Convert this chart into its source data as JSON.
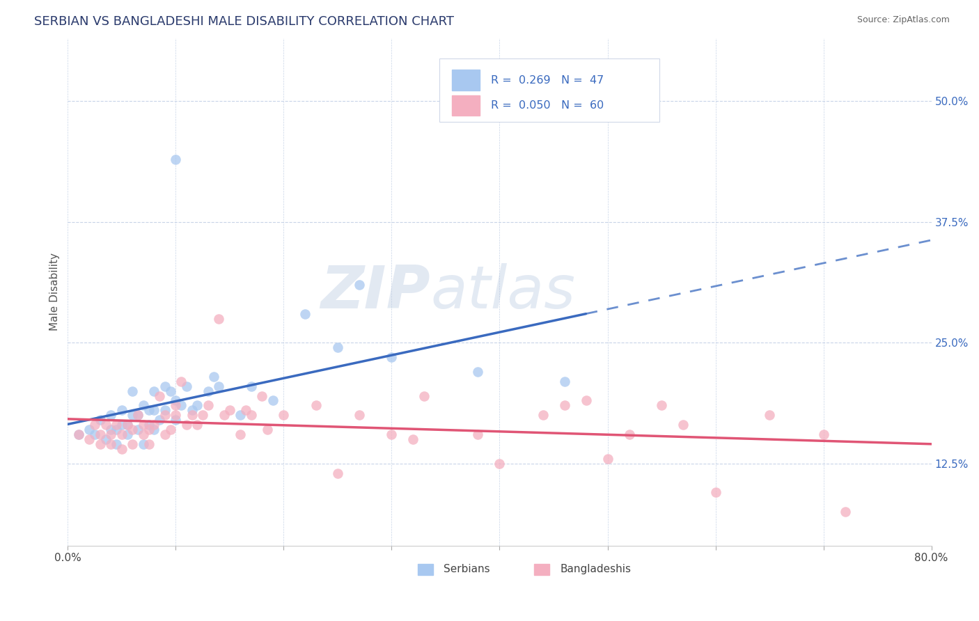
{
  "title": "SERBIAN VS BANGLADESHI MALE DISABILITY CORRELATION CHART",
  "source": "Source: ZipAtlas.com",
  "ylabel": "Male Disability",
  "watermark": "ZIPAtlas",
  "legend_serbian_R": "0.269",
  "legend_serbian_N": "47",
  "legend_bangladeshi_R": "0.050",
  "legend_bangladeshi_N": "60",
  "ytick_labels": [
    "12.5%",
    "25.0%",
    "37.5%",
    "50.0%"
  ],
  "ytick_values": [
    0.125,
    0.25,
    0.375,
    0.5
  ],
  "xlim": [
    0.0,
    0.8
  ],
  "ylim": [
    0.04,
    0.565
  ],
  "serbian_color": "#a8c8f0",
  "bangladeshi_color": "#f4afc0",
  "serbian_line_color": "#3a6abf",
  "bangladeshi_line_color": "#e05575",
  "serbian_scatter": [
    [
      0.01,
      0.155
    ],
    [
      0.02,
      0.16
    ],
    [
      0.025,
      0.155
    ],
    [
      0.03,
      0.17
    ],
    [
      0.035,
      0.15
    ],
    [
      0.04,
      0.16
    ],
    [
      0.04,
      0.175
    ],
    [
      0.045,
      0.145
    ],
    [
      0.045,
      0.16
    ],
    [
      0.05,
      0.165
    ],
    [
      0.05,
      0.18
    ],
    [
      0.055,
      0.155
    ],
    [
      0.055,
      0.165
    ],
    [
      0.06,
      0.175
    ],
    [
      0.06,
      0.2
    ],
    [
      0.065,
      0.16
    ],
    [
      0.065,
      0.175
    ],
    [
      0.07,
      0.185
    ],
    [
      0.07,
      0.145
    ],
    [
      0.075,
      0.165
    ],
    [
      0.075,
      0.18
    ],
    [
      0.08,
      0.16
    ],
    [
      0.08,
      0.18
    ],
    [
      0.08,
      0.2
    ],
    [
      0.085,
      0.17
    ],
    [
      0.09,
      0.205
    ],
    [
      0.09,
      0.18
    ],
    [
      0.095,
      0.2
    ],
    [
      0.1,
      0.17
    ],
    [
      0.1,
      0.19
    ],
    [
      0.105,
      0.185
    ],
    [
      0.11,
      0.205
    ],
    [
      0.115,
      0.18
    ],
    [
      0.12,
      0.185
    ],
    [
      0.13,
      0.2
    ],
    [
      0.135,
      0.215
    ],
    [
      0.14,
      0.205
    ],
    [
      0.16,
      0.175
    ],
    [
      0.17,
      0.205
    ],
    [
      0.19,
      0.19
    ],
    [
      0.22,
      0.28
    ],
    [
      0.25,
      0.245
    ],
    [
      0.3,
      0.235
    ],
    [
      0.38,
      0.22
    ],
    [
      0.46,
      0.21
    ],
    [
      0.1,
      0.44
    ],
    [
      0.27,
      0.31
    ]
  ],
  "bangladeshi_scatter": [
    [
      0.01,
      0.155
    ],
    [
      0.02,
      0.15
    ],
    [
      0.025,
      0.165
    ],
    [
      0.03,
      0.145
    ],
    [
      0.03,
      0.155
    ],
    [
      0.035,
      0.165
    ],
    [
      0.04,
      0.145
    ],
    [
      0.04,
      0.155
    ],
    [
      0.045,
      0.165
    ],
    [
      0.05,
      0.14
    ],
    [
      0.05,
      0.155
    ],
    [
      0.055,
      0.165
    ],
    [
      0.06,
      0.145
    ],
    [
      0.06,
      0.16
    ],
    [
      0.065,
      0.175
    ],
    [
      0.07,
      0.155
    ],
    [
      0.07,
      0.165
    ],
    [
      0.075,
      0.145
    ],
    [
      0.075,
      0.16
    ],
    [
      0.08,
      0.165
    ],
    [
      0.085,
      0.195
    ],
    [
      0.09,
      0.155
    ],
    [
      0.09,
      0.175
    ],
    [
      0.095,
      0.16
    ],
    [
      0.1,
      0.185
    ],
    [
      0.1,
      0.175
    ],
    [
      0.105,
      0.21
    ],
    [
      0.11,
      0.165
    ],
    [
      0.115,
      0.175
    ],
    [
      0.12,
      0.165
    ],
    [
      0.125,
      0.175
    ],
    [
      0.13,
      0.185
    ],
    [
      0.14,
      0.275
    ],
    [
      0.145,
      0.175
    ],
    [
      0.15,
      0.18
    ],
    [
      0.16,
      0.155
    ],
    [
      0.165,
      0.18
    ],
    [
      0.17,
      0.175
    ],
    [
      0.18,
      0.195
    ],
    [
      0.185,
      0.16
    ],
    [
      0.2,
      0.175
    ],
    [
      0.23,
      0.185
    ],
    [
      0.25,
      0.115
    ],
    [
      0.27,
      0.175
    ],
    [
      0.3,
      0.155
    ],
    [
      0.32,
      0.15
    ],
    [
      0.33,
      0.195
    ],
    [
      0.38,
      0.155
    ],
    [
      0.4,
      0.125
    ],
    [
      0.44,
      0.175
    ],
    [
      0.46,
      0.185
    ],
    [
      0.48,
      0.19
    ],
    [
      0.5,
      0.13
    ],
    [
      0.52,
      0.155
    ],
    [
      0.55,
      0.185
    ],
    [
      0.57,
      0.165
    ],
    [
      0.6,
      0.095
    ],
    [
      0.65,
      0.175
    ],
    [
      0.7,
      0.155
    ],
    [
      0.72,
      0.075
    ]
  ],
  "background_color": "#ffffff",
  "grid_color": "#c8d4e8",
  "plot_bg_color": "#ffffff"
}
